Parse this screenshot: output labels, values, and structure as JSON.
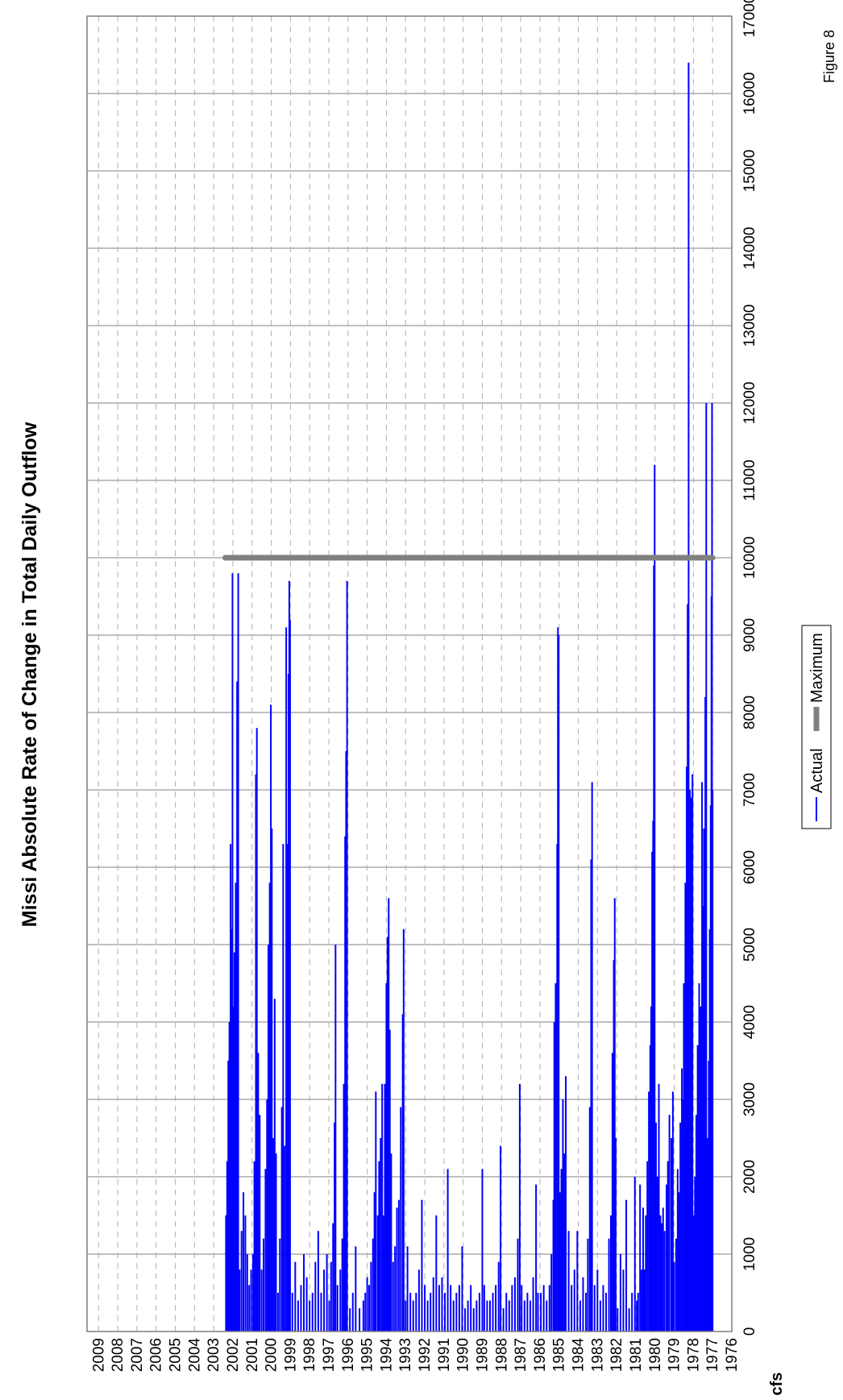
{
  "figure_label": "Figure 8",
  "chart_data": {
    "type": "line",
    "title": "Missi Absolute Rate of Change in Total Daily Outflow",
    "xlabel": "",
    "ylabel": "cfs",
    "x_ticks": [
      "1976",
      "1977",
      "1978",
      "1979",
      "1980",
      "1981",
      "1982",
      "1983",
      "1984",
      "1985",
      "1986",
      "1987",
      "1988",
      "1989",
      "1990",
      "1991",
      "1992",
      "1993",
      "1994",
      "1995",
      "1996",
      "1997",
      "1998",
      "1999",
      "2000",
      "2001",
      "2002",
      "2003",
      "2004",
      "2005",
      "2006",
      "2007",
      "2008",
      "2009"
    ],
    "xlim": [
      1976.0,
      2009.6
    ],
    "ylim": [
      0,
      17000
    ],
    "y_ticks": [
      0,
      1000,
      2000,
      3000,
      4000,
      5000,
      6000,
      7000,
      8000,
      9000,
      10000,
      11000,
      12000,
      13000,
      14000,
      15000,
      16000,
      17000
    ],
    "grid": true,
    "legend_position": "bottom",
    "series": [
      {
        "name": "Actual",
        "color": "#0000ff",
        "points": [
          [
            1977.0,
            7000
          ],
          [
            1977.03,
            12000
          ],
          [
            1977.06,
            9500
          ],
          [
            1977.1,
            6800
          ],
          [
            1977.15,
            5200
          ],
          [
            1977.2,
            3500
          ],
          [
            1977.28,
            2500
          ],
          [
            1977.33,
            12000
          ],
          [
            1977.38,
            8200
          ],
          [
            1977.45,
            6500
          ],
          [
            1977.5,
            5500
          ],
          [
            1977.55,
            7100
          ],
          [
            1977.62,
            4200
          ],
          [
            1977.7,
            4500
          ],
          [
            1977.78,
            3700
          ],
          [
            1977.85,
            2800
          ],
          [
            1977.92,
            2000
          ],
          [
            1977.98,
            1500
          ],
          [
            1978.05,
            7200
          ],
          [
            1978.1,
            6900
          ],
          [
            1978.18,
            7000
          ],
          [
            1978.25,
            16400
          ],
          [
            1978.3,
            9400
          ],
          [
            1978.35,
            7300
          ],
          [
            1978.42,
            5800
          ],
          [
            1978.5,
            4500
          ],
          [
            1978.55,
            3000
          ],
          [
            1978.6,
            3400
          ],
          [
            1978.68,
            2700
          ],
          [
            1978.75,
            1800
          ],
          [
            1978.82,
            2100
          ],
          [
            1978.9,
            1200
          ],
          [
            1979.0,
            900
          ],
          [
            1979.07,
            3100
          ],
          [
            1979.15,
            2500
          ],
          [
            1979.25,
            2800
          ],
          [
            1979.33,
            2200
          ],
          [
            1979.4,
            1900
          ],
          [
            1979.5,
            1300
          ],
          [
            1979.58,
            1600
          ],
          [
            1979.65,
            1400
          ],
          [
            1979.72,
            1500
          ],
          [
            1979.8,
            3200
          ],
          [
            1979.88,
            2000
          ],
          [
            1979.95,
            2700
          ],
          [
            1980.02,
            11200
          ],
          [
            1980.06,
            9900
          ],
          [
            1980.1,
            6600
          ],
          [
            1980.15,
            6200
          ],
          [
            1980.2,
            4200
          ],
          [
            1980.25,
            3700
          ],
          [
            1980.32,
            3100
          ],
          [
            1980.4,
            2200
          ],
          [
            1980.48,
            1500
          ],
          [
            1980.55,
            800
          ],
          [
            1980.62,
            1600
          ],
          [
            1980.7,
            800
          ],
          [
            1980.78,
            1900
          ],
          [
            1980.88,
            500
          ],
          [
            1980.95,
            400
          ],
          [
            1981.05,
            2000
          ],
          [
            1981.2,
            500
          ],
          [
            1981.35,
            300
          ],
          [
            1981.5,
            1700
          ],
          [
            1981.65,
            800
          ],
          [
            1981.8,
            1000
          ],
          [
            1981.95,
            300
          ],
          [
            1982.05,
            2500
          ],
          [
            1982.1,
            5600
          ],
          [
            1982.15,
            4800
          ],
          [
            1982.22,
            3600
          ],
          [
            1982.3,
            1500
          ],
          [
            1982.4,
            1200
          ],
          [
            1982.55,
            500
          ],
          [
            1982.7,
            600
          ],
          [
            1982.85,
            400
          ],
          [
            1983.0,
            800
          ],
          [
            1983.15,
            600
          ],
          [
            1983.28,
            7100
          ],
          [
            1983.33,
            6100
          ],
          [
            1983.4,
            2900
          ],
          [
            1983.5,
            1200
          ],
          [
            1983.6,
            500
          ],
          [
            1983.75,
            700
          ],
          [
            1983.9,
            400
          ],
          [
            1984.05,
            1300
          ],
          [
            1984.2,
            800
          ],
          [
            1984.35,
            600
          ],
          [
            1984.5,
            1300
          ],
          [
            1984.65,
            3300
          ],
          [
            1984.72,
            2300
          ],
          [
            1984.8,
            3000
          ],
          [
            1984.88,
            2100
          ],
          [
            1984.95,
            1800
          ],
          [
            1985.02,
            9000
          ],
          [
            1985.06,
            9100
          ],
          [
            1985.1,
            6300
          ],
          [
            1985.18,
            4500
          ],
          [
            1985.25,
            4000
          ],
          [
            1985.3,
            1700
          ],
          [
            1985.4,
            1000
          ],
          [
            1985.5,
            600
          ],
          [
            1985.65,
            400
          ],
          [
            1985.8,
            600
          ],
          [
            1985.95,
            500
          ],
          [
            1986.1,
            500
          ],
          [
            1986.2,
            1900
          ],
          [
            1986.35,
            700
          ],
          [
            1986.5,
            400
          ],
          [
            1986.65,
            500
          ],
          [
            1986.8,
            400
          ],
          [
            1986.95,
            600
          ],
          [
            1987.05,
            3200
          ],
          [
            1987.15,
            1200
          ],
          [
            1987.3,
            700
          ],
          [
            1987.45,
            600
          ],
          [
            1987.6,
            400
          ],
          [
            1987.75,
            500
          ],
          [
            1987.9,
            300
          ],
          [
            1988.05,
            2400
          ],
          [
            1988.15,
            900
          ],
          [
            1988.3,
            600
          ],
          [
            1988.45,
            500
          ],
          [
            1988.6,
            400
          ],
          [
            1988.75,
            400
          ],
          [
            1988.9,
            600
          ],
          [
            1989.0,
            2100
          ],
          [
            1989.15,
            500
          ],
          [
            1989.3,
            400
          ],
          [
            1989.45,
            300
          ],
          [
            1989.6,
            600
          ],
          [
            1989.75,
            400
          ],
          [
            1989.9,
            300
          ],
          [
            1990.05,
            1100
          ],
          [
            1990.2,
            600
          ],
          [
            1990.35,
            500
          ],
          [
            1990.5,
            400
          ],
          [
            1990.65,
            600
          ],
          [
            1990.8,
            2100
          ],
          [
            1990.95,
            500
          ],
          [
            1991.1,
            700
          ],
          [
            1991.25,
            600
          ],
          [
            1991.4,
            1500
          ],
          [
            1991.55,
            700
          ],
          [
            1991.7,
            500
          ],
          [
            1991.85,
            400
          ],
          [
            1992.0,
            600
          ],
          [
            1992.15,
            1700
          ],
          [
            1992.3,
            800
          ],
          [
            1992.45,
            500
          ],
          [
            1992.6,
            400
          ],
          [
            1992.75,
            500
          ],
          [
            1992.9,
            1100
          ],
          [
            1993.0,
            400
          ],
          [
            1993.1,
            5200
          ],
          [
            1993.15,
            4100
          ],
          [
            1993.25,
            2900
          ],
          [
            1993.35,
            1700
          ],
          [
            1993.45,
            1600
          ],
          [
            1993.55,
            1100
          ],
          [
            1993.65,
            900
          ],
          [
            1993.75,
            2300
          ],
          [
            1993.82,
            3900
          ],
          [
            1993.88,
            5600
          ],
          [
            1993.94,
            5100
          ],
          [
            1994.0,
            4500
          ],
          [
            1994.08,
            3200
          ],
          [
            1994.15,
            1500
          ],
          [
            1994.22,
            3200
          ],
          [
            1994.3,
            2500
          ],
          [
            1994.38,
            2200
          ],
          [
            1994.45,
            1500
          ],
          [
            1994.55,
            3100
          ],
          [
            1994.62,
            1800
          ],
          [
            1994.7,
            1200
          ],
          [
            1994.8,
            900
          ],
          [
            1994.9,
            600
          ],
          [
            1995.0,
            700
          ],
          [
            1995.1,
            500
          ],
          [
            1995.2,
            400
          ],
          [
            1995.4,
            300
          ],
          [
            1995.6,
            1100
          ],
          [
            1995.75,
            500
          ],
          [
            1995.9,
            300
          ],
          [
            1996.05,
            9700
          ],
          [
            1996.1,
            7500
          ],
          [
            1996.15,
            6400
          ],
          [
            1996.22,
            3200
          ],
          [
            1996.3,
            1200
          ],
          [
            1996.4,
            800
          ],
          [
            1996.55,
            600
          ],
          [
            1996.65,
            5000
          ],
          [
            1996.7,
            2700
          ],
          [
            1996.78,
            1400
          ],
          [
            1996.88,
            900
          ],
          [
            1996.98,
            400
          ],
          [
            1997.1,
            1000
          ],
          [
            1997.25,
            800
          ],
          [
            1997.4,
            500
          ],
          [
            1997.55,
            1300
          ],
          [
            1997.7,
            900
          ],
          [
            1997.85,
            500
          ],
          [
            1998.0,
            400
          ],
          [
            1998.15,
            700
          ],
          [
            1998.3,
            1000
          ],
          [
            1998.45,
            600
          ],
          [
            1998.6,
            400
          ],
          [
            1998.75,
            900
          ],
          [
            1998.9,
            500
          ],
          [
            1999.02,
            9200
          ],
          [
            1999.06,
            9700
          ],
          [
            1999.1,
            8500
          ],
          [
            1999.15,
            6300
          ],
          [
            1999.22,
            9100
          ],
          [
            1999.3,
            2400
          ],
          [
            1999.38,
            6300
          ],
          [
            1999.45,
            2900
          ],
          [
            1999.55,
            1200
          ],
          [
            1999.65,
            500
          ],
          [
            1999.75,
            2300
          ],
          [
            1999.82,
            4300
          ],
          [
            1999.9,
            2500
          ],
          [
            1999.97,
            6500
          ],
          [
            2000.02,
            8100
          ],
          [
            2000.08,
            5800
          ],
          [
            2000.15,
            5000
          ],
          [
            2000.22,
            3000
          ],
          [
            2000.3,
            2100
          ],
          [
            2000.4,
            1200
          ],
          [
            2000.5,
            800
          ],
          [
            2000.6,
            2800
          ],
          [
            2000.68,
            3600
          ],
          [
            2000.75,
            7800
          ],
          [
            2000.8,
            7200
          ],
          [
            2000.88,
            2200
          ],
          [
            2000.95,
            1000
          ],
          [
            2001.05,
            800
          ],
          [
            2001.15,
            600
          ],
          [
            2001.25,
            1000
          ],
          [
            2001.35,
            1500
          ],
          [
            2001.45,
            1800
          ],
          [
            2001.55,
            1300
          ],
          [
            2001.65,
            800
          ],
          [
            2001.72,
            9800
          ],
          [
            2001.78,
            8400
          ],
          [
            2001.85,
            5800
          ],
          [
            2001.92,
            4900
          ],
          [
            2001.97,
            4200
          ],
          [
            2002.02,
            9800
          ],
          [
            2002.06,
            5200
          ],
          [
            2002.12,
            6300
          ],
          [
            2002.18,
            4000
          ],
          [
            2002.24,
            3500
          ],
          [
            2002.3,
            2200
          ],
          [
            2002.36,
            1500
          ]
        ]
      },
      {
        "name": "Maximum",
        "color": "#808080",
        "points": [
          [
            1977.0,
            10000
          ],
          [
            2002.4,
            10000
          ]
        ]
      }
    ]
  }
}
